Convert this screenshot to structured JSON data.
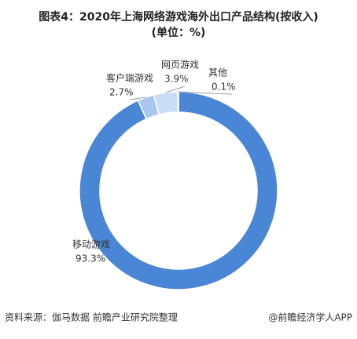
{
  "chart_data": {
    "type": "donut",
    "title": "图表4：2020年上海网络游戏海外出口产品结构(按收入)",
    "subtitle": "(单位：%)",
    "categories": [
      "移动游戏",
      "客户端游戏",
      "网页游戏",
      "其他"
    ],
    "values": [
      93.3,
      2.7,
      3.9,
      0.1
    ],
    "value_labels": [
      "93.3%",
      "2.7%",
      "3.9%",
      "0.1%"
    ],
    "colors": [
      "#4a86d6",
      "#a8c6ee",
      "#c9ddf6",
      "#dfe9f8"
    ],
    "source": "资料来源：伽马数据 前瞻产业研究院整理",
    "credit": "@前瞻经济学人APP"
  }
}
